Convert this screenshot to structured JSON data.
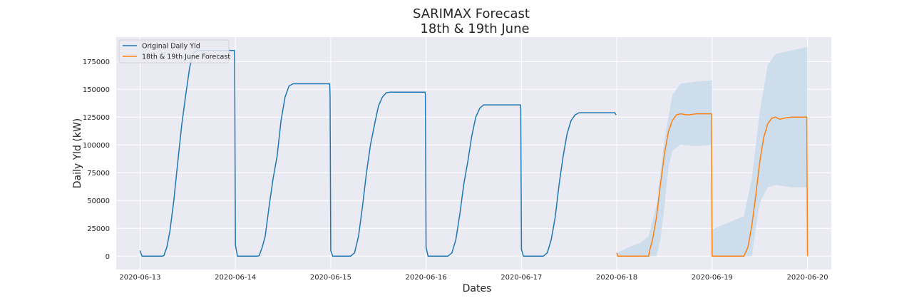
{
  "chart_data": {
    "type": "line",
    "title": "SARIMAX Forecast",
    "subtitle": "18th & 19th June",
    "xlabel": "Dates",
    "ylabel": "Daily Yld (kW)",
    "x_range": [
      "2020-06-12T18:00",
      "2020-06-20T06:00"
    ],
    "ylim": [
      -12000,
      197000
    ],
    "x_ticks": [
      "2020-06-13",
      "2020-06-14",
      "2020-06-15",
      "2020-06-16",
      "2020-06-17",
      "2020-06-18",
      "2020-06-19",
      "2020-06-20"
    ],
    "y_ticks": [
      "0",
      "25000",
      "50000",
      "75000",
      "100000",
      "125000",
      "150000",
      "175000"
    ],
    "grid": true,
    "legend_position": "top-left",
    "colors": {
      "original": "#1f77b4",
      "forecast": "#ff7f0e",
      "confidence": "#c8daea",
      "background": "#eaeaf2",
      "grid": "#ffffff"
    },
    "series": [
      {
        "name": "Original Daily Yld",
        "points": [
          [
            "2020-06-13T00:00",
            5000
          ],
          [
            "2020-06-13T00:30",
            0
          ],
          [
            "2020-06-13T05:30",
            0
          ],
          [
            "2020-06-13T06:00",
            500
          ],
          [
            "2020-06-13T06:45",
            8000
          ],
          [
            "2020-06-13T07:30",
            22000
          ],
          [
            "2020-06-13T08:30",
            50000
          ],
          [
            "2020-06-13T09:30",
            85000
          ],
          [
            "2020-06-13T10:30",
            118000
          ],
          [
            "2020-06-13T11:30",
            145000
          ],
          [
            "2020-06-13T12:30",
            170000
          ],
          [
            "2020-06-13T13:30",
            183000
          ],
          [
            "2020-06-13T14:30",
            185000
          ],
          [
            "2020-06-13T23:45",
            185000
          ],
          [
            "2020-06-13T23:50",
            172000
          ],
          [
            "2020-06-14T00:00",
            10000
          ],
          [
            "2020-06-14T00:30",
            0
          ],
          [
            "2020-06-14T05:30",
            0
          ],
          [
            "2020-06-14T06:00",
            500
          ],
          [
            "2020-06-14T06:45",
            8000
          ],
          [
            "2020-06-14T07:30",
            18000
          ],
          [
            "2020-06-14T08:30",
            45000
          ],
          [
            "2020-06-14T09:30",
            70000
          ],
          [
            "2020-06-14T10:30",
            90000
          ],
          [
            "2020-06-14T11:30",
            122000
          ],
          [
            "2020-06-14T12:30",
            143000
          ],
          [
            "2020-06-14T13:30",
            153000
          ],
          [
            "2020-06-14T14:30",
            155000
          ],
          [
            "2020-06-14T23:45",
            155000
          ],
          [
            "2020-06-14T23:50",
            143000
          ],
          [
            "2020-06-15T00:00",
            5000
          ],
          [
            "2020-06-15T00:30",
            0
          ],
          [
            "2020-06-15T05:00",
            0
          ],
          [
            "2020-06-15T06:00",
            3000
          ],
          [
            "2020-06-15T07:00",
            18000
          ],
          [
            "2020-06-15T08:00",
            45000
          ],
          [
            "2020-06-15T09:00",
            75000
          ],
          [
            "2020-06-15T10:00",
            100000
          ],
          [
            "2020-06-15T11:00",
            118000
          ],
          [
            "2020-06-15T12:00",
            135000
          ],
          [
            "2020-06-15T13:00",
            143000
          ],
          [
            "2020-06-15T14:00",
            147000
          ],
          [
            "2020-06-15T15:00",
            147500
          ],
          [
            "2020-06-15T23:45",
            147500
          ],
          [
            "2020-06-15T23:50",
            145000
          ],
          [
            "2020-06-16T00:00",
            8000
          ],
          [
            "2020-06-16T00:30",
            0
          ],
          [
            "2020-06-16T05:30",
            0
          ],
          [
            "2020-06-16T06:30",
            3000
          ],
          [
            "2020-06-16T07:30",
            15000
          ],
          [
            "2020-06-16T08:30",
            38000
          ],
          [
            "2020-06-16T09:30",
            65000
          ],
          [
            "2020-06-16T10:30",
            85000
          ],
          [
            "2020-06-16T11:30",
            108000
          ],
          [
            "2020-06-16T12:30",
            125000
          ],
          [
            "2020-06-16T13:30",
            133000
          ],
          [
            "2020-06-16T14:30",
            136000
          ],
          [
            "2020-06-16T23:45",
            136000
          ],
          [
            "2020-06-16T23:50",
            133000
          ],
          [
            "2020-06-17T00:00",
            6000
          ],
          [
            "2020-06-17T00:30",
            0
          ],
          [
            "2020-06-17T05:30",
            0
          ],
          [
            "2020-06-17T06:30",
            3000
          ],
          [
            "2020-06-17T07:30",
            15000
          ],
          [
            "2020-06-17T08:30",
            35000
          ],
          [
            "2020-06-17T09:30",
            65000
          ],
          [
            "2020-06-17T10:30",
            90000
          ],
          [
            "2020-06-17T11:30",
            110000
          ],
          [
            "2020-06-17T12:30",
            122000
          ],
          [
            "2020-06-17T13:30",
            127000
          ],
          [
            "2020-06-17T14:30",
            129000
          ],
          [
            "2020-06-17T23:30",
            129000
          ],
          [
            "2020-06-17T23:50",
            127000
          ]
        ]
      },
      {
        "name": "18th & 19th June Forecast",
        "points": [
          [
            "2020-06-18T00:00",
            3000
          ],
          [
            "2020-06-18T00:15",
            0
          ],
          [
            "2020-06-18T08:00",
            0
          ],
          [
            "2020-06-18T08:15",
            5000
          ],
          [
            "2020-06-18T09:00",
            15000
          ],
          [
            "2020-06-18T10:00",
            35000
          ],
          [
            "2020-06-18T11:00",
            65000
          ],
          [
            "2020-06-18T12:00",
            92000
          ],
          [
            "2020-06-18T13:00",
            112000
          ],
          [
            "2020-06-18T14:00",
            122000
          ],
          [
            "2020-06-18T15:00",
            127000
          ],
          [
            "2020-06-18T16:00",
            128000
          ],
          [
            "2020-06-18T18:00",
            127000
          ],
          [
            "2020-06-18T20:00",
            128000
          ],
          [
            "2020-06-18T23:50",
            128000
          ],
          [
            "2020-06-19T00:00",
            0
          ],
          [
            "2020-06-19T08:00",
            0
          ],
          [
            "2020-06-19T09:00",
            8000
          ],
          [
            "2020-06-19T10:00",
            28000
          ],
          [
            "2020-06-19T11:00",
            55000
          ],
          [
            "2020-06-19T12:00",
            85000
          ],
          [
            "2020-06-19T13:00",
            107000
          ],
          [
            "2020-06-19T14:00",
            119000
          ],
          [
            "2020-06-19T15:00",
            124000
          ],
          [
            "2020-06-19T16:00",
            125000
          ],
          [
            "2020-06-19T17:00",
            123000
          ],
          [
            "2020-06-19T18:00",
            124000
          ],
          [
            "2020-06-19T20:00",
            125000
          ],
          [
            "2020-06-19T23:50",
            125000
          ],
          [
            "2020-06-20T00:00",
            0
          ]
        ]
      }
    ],
    "confidence_band": {
      "upper": [
        [
          "2020-06-18T00:00",
          3000
        ],
        [
          "2020-06-18T03:00",
          8000
        ],
        [
          "2020-06-18T06:00",
          12000
        ],
        [
          "2020-06-18T08:00",
          18000
        ],
        [
          "2020-06-18T10:00",
          45000
        ],
        [
          "2020-06-18T12:00",
          105000
        ],
        [
          "2020-06-18T14:00",
          145000
        ],
        [
          "2020-06-18T16:00",
          155000
        ],
        [
          "2020-06-18T20:00",
          157000
        ],
        [
          "2020-06-18T23:59",
          158000
        ],
        [
          "2020-06-19T00:00",
          24000
        ],
        [
          "2020-06-19T04:00",
          30000
        ],
        [
          "2020-06-19T08:00",
          36000
        ],
        [
          "2020-06-19T10:00",
          70000
        ],
        [
          "2020-06-19T12:00",
          130000
        ],
        [
          "2020-06-19T14:00",
          172000
        ],
        [
          "2020-06-19T16:00",
          182000
        ],
        [
          "2020-06-19T20:00",
          185000
        ],
        [
          "2020-06-19T23:59",
          188000
        ]
      ],
      "lower": [
        [
          "2020-06-18T00:00",
          0
        ],
        [
          "2020-06-18T10:00",
          0
        ],
        [
          "2020-06-18T11:00",
          15000
        ],
        [
          "2020-06-18T12:00",
          45000
        ],
        [
          "2020-06-18T13:00",
          80000
        ],
        [
          "2020-06-18T14:00",
          95000
        ],
        [
          "2020-06-18T16:00",
          100000
        ],
        [
          "2020-06-18T20:00",
          99000
        ],
        [
          "2020-06-18T23:59",
          100000
        ],
        [
          "2020-06-19T00:00",
          0
        ],
        [
          "2020-06-19T10:00",
          0
        ],
        [
          "2020-06-19T11:00",
          25000
        ],
        [
          "2020-06-19T12:00",
          48000
        ],
        [
          "2020-06-19T14:00",
          62000
        ],
        [
          "2020-06-19T16:00",
          64000
        ],
        [
          "2020-06-19T20:00",
          62000
        ],
        [
          "2020-06-19T23:59",
          62000
        ]
      ]
    }
  }
}
